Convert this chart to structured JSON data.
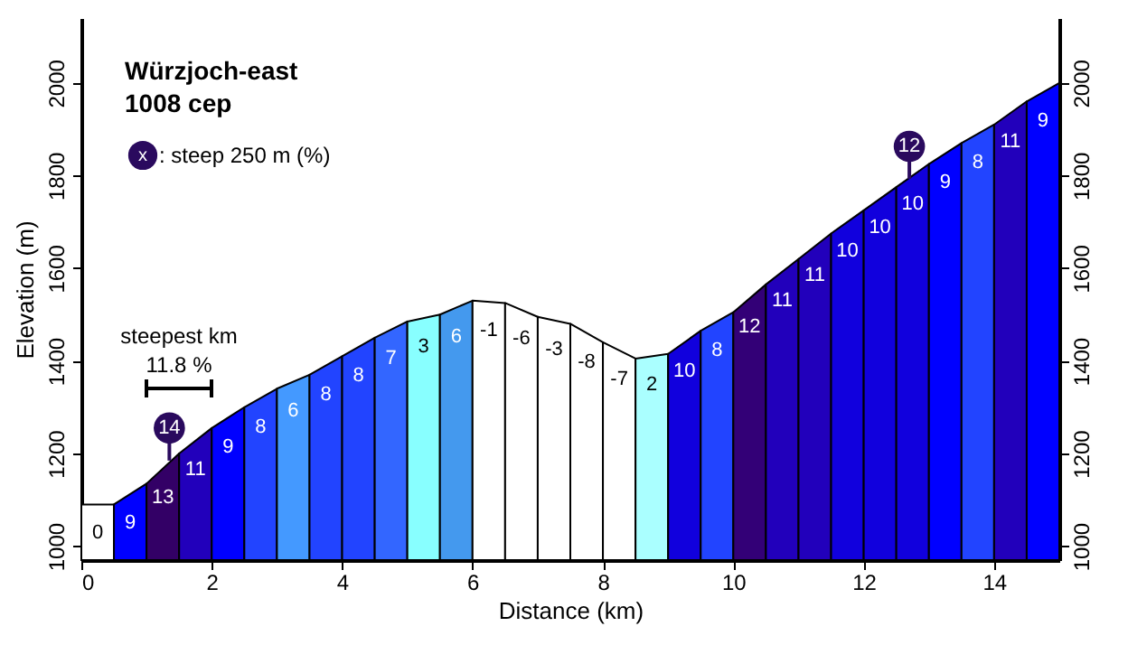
{
  "chart_data": {
    "type": "area",
    "title": "Würzjoch-east",
    "subtitle": "1008 cep",
    "xlabel": "Distance (km)",
    "ylabel": "Elevation (m)",
    "xlim": [
      0,
      15
    ],
    "xticks": [
      0,
      2,
      4,
      6,
      8,
      10,
      12,
      14
    ],
    "ylim": [
      970,
      2140
    ],
    "yticks": [
      1000,
      1200,
      1400,
      1600,
      1800,
      2000
    ],
    "y2lim": [
      970,
      2140
    ],
    "y2ticks": [
      1000,
      1200,
      1400,
      1600,
      1800,
      2000
    ],
    "series": [
      {
        "type": "area",
        "color": "#ffffff",
        "x": [
          0,
          0.5
        ],
        "values": [
          1090,
          1090
        ]
      },
      {
        "type": "area",
        "color": "#0000ff",
        "x": [
          0.5,
          1
        ],
        "values": [
          1090,
          1135
        ]
      },
      {
        "type": "area",
        "color": "#330066",
        "x": [
          1,
          1.5
        ],
        "values": [
          1135,
          1200
        ]
      },
      {
        "type": "area",
        "color": "#2200bb",
        "x": [
          1.5,
          2
        ],
        "values": [
          1200,
          1255
        ]
      },
      {
        "type": "area",
        "color": "#0000ff",
        "x": [
          2,
          2.5
        ],
        "values": [
          1255,
          1300
        ]
      },
      {
        "type": "area",
        "color": "#2244ff",
        "x": [
          2.5,
          3
        ],
        "values": [
          1300,
          1340
        ]
      },
      {
        "type": "area",
        "color": "#4499ff",
        "x": [
          3,
          3.5
        ],
        "values": [
          1340,
          1370
        ]
      },
      {
        "type": "area",
        "color": "#2244ff",
        "x": [
          3.5,
          4
        ],
        "values": [
          1370,
          1410
        ]
      },
      {
        "type": "area",
        "color": "#2244ff",
        "x": [
          4,
          4.5
        ],
        "values": [
          1410,
          1450
        ]
      },
      {
        "type": "area",
        "color": "#3366ff",
        "x": [
          4.5,
          5
        ],
        "values": [
          1450,
          1485
        ]
      },
      {
        "type": "area",
        "color": "#88ffff",
        "x": [
          5,
          5.5
        ],
        "values": [
          1485,
          1500
        ]
      },
      {
        "type": "area",
        "color": "#4499ee",
        "x": [
          5.5,
          6
        ],
        "values": [
          1500,
          1530
        ]
      },
      {
        "type": "area",
        "color": "#ffffff",
        "x": [
          6,
          6.5
        ],
        "values": [
          1530,
          1525
        ]
      },
      {
        "type": "area",
        "color": "#ffffff",
        "x": [
          6.5,
          7
        ],
        "values": [
          1525,
          1495
        ]
      },
      {
        "type": "area",
        "color": "#ffffff",
        "x": [
          7,
          7.5
        ],
        "values": [
          1495,
          1480
        ]
      },
      {
        "type": "area",
        "color": "#ffffff",
        "x": [
          7.5,
          8
        ],
        "values": [
          1480,
          1440
        ]
      },
      {
        "type": "area",
        "color": "#ffffff",
        "x": [
          8,
          8.5
        ],
        "values": [
          1440,
          1405
        ]
      },
      {
        "type": "area",
        "color": "#aaffff",
        "x": [
          8.5,
          9
        ],
        "values": [
          1405,
          1415
        ]
      },
      {
        "type": "area",
        "color": "#1100dd",
        "x": [
          9,
          9.5
        ],
        "values": [
          1415,
          1465
        ]
      },
      {
        "type": "area",
        "color": "#2244ff",
        "x": [
          9.5,
          10
        ],
        "values": [
          1465,
          1505
        ]
      },
      {
        "type": "area",
        "color": "#330077",
        "x": [
          10,
          10.5
        ],
        "values": [
          1505,
          1565
        ]
      },
      {
        "type": "area",
        "color": "#2200bb",
        "x": [
          10.5,
          11
        ],
        "values": [
          1565,
          1620
        ]
      },
      {
        "type": "area",
        "color": "#2200bb",
        "x": [
          11,
          11.5
        ],
        "values": [
          1620,
          1675
        ]
      },
      {
        "type": "area",
        "color": "#1100dd",
        "x": [
          11.5,
          12
        ],
        "values": [
          1675,
          1725
        ]
      },
      {
        "type": "area",
        "color": "#1100dd",
        "x": [
          12,
          12.5
        ],
        "values": [
          1725,
          1775
        ]
      },
      {
        "type": "area",
        "color": "#1100dd",
        "x": [
          12.5,
          13
        ],
        "values": [
          1775,
          1825
        ]
      },
      {
        "type": "area",
        "color": "#0000ff",
        "x": [
          13,
          13.5
        ],
        "values": [
          1825,
          1870
        ]
      },
      {
        "type": "area",
        "color": "#2244ff",
        "x": [
          13.5,
          14
        ],
        "values": [
          1870,
          1910
        ]
      },
      {
        "type": "area",
        "color": "#2200bb",
        "x": [
          14,
          14.5
        ],
        "values": [
          1910,
          1960
        ]
      },
      {
        "type": "area",
        "color": "#0000ff",
        "x": [
          14.5,
          15
        ],
        "values": [
          1960,
          2000
        ]
      },
      {
        "type": "scatter",
        "color": "#2a0a5e",
        "marker": "circle",
        "x": [
          1.35,
          12.7
        ],
        "values": [
          1255,
          1863
        ]
      }
    ],
    "annotations": [
      "x",
      ": steep 250 m (%)",
      "steepest km",
      "11.8 %",
      {
        "text": "14",
        "x": 1.35,
        "y": 1255
      },
      {
        "text": "12",
        "x": 12.7,
        "y": 1863
      },
      {
        "text": "0",
        "x": 0.25,
        "y": 1090
      },
      {
        "text": "9",
        "x": 0.75,
        "y": 1112
      },
      {
        "text": "13",
        "x": 1.25,
        "y": 1167
      },
      {
        "text": "11",
        "x": 1.75,
        "y": 1227
      },
      {
        "text": "9",
        "x": 2.25,
        "y": 1277
      },
      {
        "text": "8",
        "x": 2.75,
        "y": 1320
      },
      {
        "text": "6",
        "x": 3.25,
        "y": 1355
      },
      {
        "text": "8",
        "x": 3.75,
        "y": 1390
      },
      {
        "text": "8",
        "x": 4.25,
        "y": 1430
      },
      {
        "text": "7",
        "x": 4.75,
        "y": 1467
      },
      {
        "text": "3",
        "x": 5.25,
        "y": 1492
      },
      {
        "text": "6",
        "x": 5.75,
        "y": 1515
      },
      {
        "text": "-1",
        "x": 6.25,
        "y": 1527
      },
      {
        "text": "-6",
        "x": 6.75,
        "y": 1510
      },
      {
        "text": "-3",
        "x": 7.25,
        "y": 1487
      },
      {
        "text": "-8",
        "x": 7.75,
        "y": 1460
      },
      {
        "text": "-7",
        "x": 8.25,
        "y": 1422
      },
      {
        "text": "2",
        "x": 8.75,
        "y": 1410
      },
      {
        "text": "10",
        "x": 9.25,
        "y": 1440
      },
      {
        "text": "8",
        "x": 9.75,
        "y": 1485
      },
      {
        "text": "12",
        "x": 10.25,
        "y": 1535
      },
      {
        "text": "11",
        "x": 10.75,
        "y": 1592
      },
      {
        "text": "11",
        "x": 11.25,
        "y": 1647
      },
      {
        "text": "10",
        "x": 11.75,
        "y": 1700
      },
      {
        "text": "10",
        "x": 12.25,
        "y": 1750
      },
      {
        "text": "10",
        "x": 12.75,
        "y": 1800
      },
      {
        "text": "9",
        "x": 13.25,
        "y": 1847
      },
      {
        "text": "8",
        "x": 13.75,
        "y": 1890
      },
      {
        "text": "11",
        "x": 14.25,
        "y": 1935
      },
      {
        "text": "9",
        "x": 14.75,
        "y": 1980
      }
    ]
  }
}
